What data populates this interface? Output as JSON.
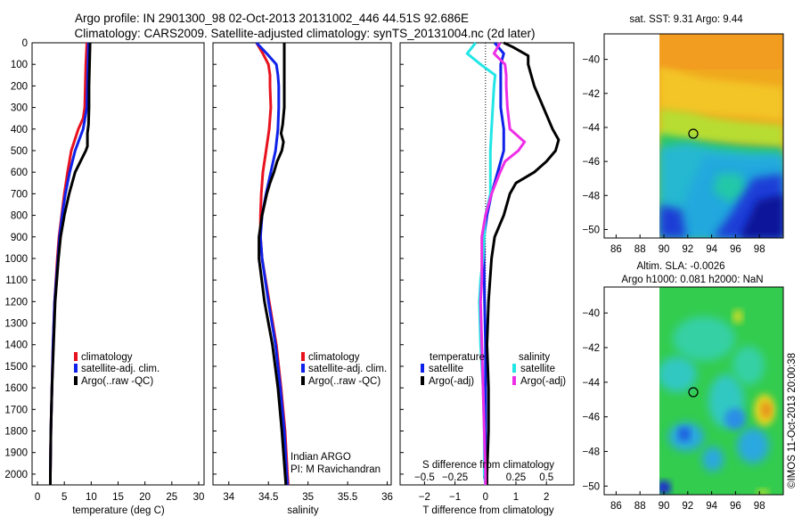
{
  "header": {
    "line1": "Argo profile: IN 2901300_98 02-Oct-2013 20131002_446 44.51S 92.686E",
    "line2": "Climatology: CARS2009. Satellite-adjusted climatology: synTS_20131004.nc (2d later)"
  },
  "colors": {
    "red": "#e8121f",
    "blue": "#0f22ea",
    "black": "#000000",
    "cyan": "#22e6e6",
    "magenta": "#ee2ee6"
  },
  "chart_data": [
    {
      "type": "line",
      "panel": "temperature",
      "xlabel": "temperature (deg C)",
      "xlim": [
        -1,
        31
      ],
      "xticks": [
        0,
        5,
        10,
        15,
        20,
        25,
        30
      ],
      "ylim": [
        0,
        2050
      ],
      "yticks": [
        0,
        100,
        200,
        300,
        400,
        500,
        600,
        700,
        800,
        900,
        1000,
        1100,
        1200,
        1300,
        1400,
        1500,
        1600,
        1700,
        1800,
        1900,
        2000
      ],
      "legend": [
        "climatology",
        "satellite-adj. clim.",
        "Argo(..raw -QC)"
      ],
      "series": [
        {
          "name": "climatology",
          "color": "red",
          "depth": [
            0,
            100,
            200,
            300,
            350,
            400,
            500,
            600,
            700,
            800,
            900,
            1000,
            1200,
            1400,
            1600,
            1800,
            2000,
            2050
          ],
          "values": [
            9.2,
            9.0,
            8.9,
            8.8,
            8.5,
            7.6,
            6.3,
            5.6,
            5.0,
            4.5,
            4.0,
            3.7,
            3.2,
            2.9,
            2.7,
            2.5,
            2.4,
            2.4
          ]
        },
        {
          "name": "satellite-adj. clim.",
          "color": "blue",
          "depth": [
            0,
            100,
            200,
            300,
            400,
            500,
            600,
            700,
            800,
            900,
            1000,
            1200,
            1400,
            1600,
            1800,
            2000,
            2050
          ],
          "values": [
            9.5,
            9.4,
            9.3,
            9.2,
            8.5,
            7.0,
            6.0,
            5.2,
            4.6,
            4.1,
            3.8,
            3.2,
            2.9,
            2.7,
            2.5,
            2.4,
            2.4
          ]
        },
        {
          "name": "Argo(..raw -QC)",
          "color": "black",
          "depth": [
            0,
            100,
            200,
            300,
            380,
            420,
            480,
            500,
            550,
            600,
            700,
            800,
            900,
            1000,
            1200,
            1400,
            1600,
            1800,
            2000,
            2050
          ],
          "values": [
            9.8,
            9.7,
            9.6,
            9.6,
            9.5,
            9.3,
            9.3,
            9.0,
            8.0,
            7.0,
            5.9,
            5.0,
            4.3,
            3.9,
            3.3,
            3.0,
            2.7,
            2.5,
            2.4,
            2.4
          ]
        }
      ]
    },
    {
      "type": "line",
      "panel": "salinity",
      "xlabel": "salinity",
      "xlim": [
        33.8,
        36.05
      ],
      "xticks": [
        34,
        34.5,
        35,
        35.5,
        36
      ],
      "ylim": [
        0,
        2050
      ],
      "legend": [
        "climatology",
        "satellite-adj. clim.",
        "Argo(..raw -QC)"
      ],
      "note": [
        "Indian ARGO",
        "PI: M Ravichandran"
      ],
      "series": [
        {
          "name": "climatology",
          "color": "red",
          "depth": [
            0,
            50,
            100,
            150,
            200,
            300,
            400,
            500,
            600,
            700,
            800,
            900,
            1000,
            1200,
            1400,
            1600,
            1800,
            2000,
            2050
          ],
          "values": [
            34.35,
            34.43,
            34.5,
            34.52,
            34.52,
            34.53,
            34.51,
            34.47,
            34.43,
            34.41,
            34.4,
            34.4,
            34.42,
            34.51,
            34.6,
            34.66,
            34.71,
            34.74,
            34.75
          ]
        },
        {
          "name": "satellite-adj. clim.",
          "color": "blue",
          "depth": [
            0,
            50,
            100,
            150,
            200,
            300,
            400,
            500,
            600,
            700,
            800,
            900,
            1000,
            1200,
            1400,
            1600,
            1800,
            2000,
            2050
          ],
          "values": [
            34.35,
            34.48,
            34.6,
            34.62,
            34.63,
            34.63,
            34.62,
            34.59,
            34.53,
            34.47,
            34.42,
            34.4,
            34.42,
            34.5,
            34.59,
            34.65,
            34.7,
            34.73,
            34.74
          ]
        },
        {
          "name": "Argo(..raw -QC)",
          "color": "black",
          "depth": [
            0,
            100,
            300,
            380,
            420,
            460,
            500,
            550,
            600,
            650,
            700,
            800,
            900,
            1000,
            1200,
            1400,
            1600,
            1800,
            2000,
            2050
          ],
          "values": [
            34.7,
            34.7,
            34.7,
            34.68,
            34.66,
            34.69,
            34.67,
            34.61,
            34.57,
            34.52,
            34.48,
            34.42,
            34.38,
            34.38,
            34.45,
            34.55,
            34.62,
            34.67,
            34.71,
            34.72
          ]
        }
      ]
    },
    {
      "type": "line",
      "panel": "difference",
      "xlabel": "T difference from climatology",
      "xlabel2": "S difference from climatology",
      "xlim": [
        -2.8,
        2.9
      ],
      "xticks": [
        -2,
        -1,
        0,
        1,
        2
      ],
      "xticks_s": [
        -0.5,
        -0.25,
        0,
        0.25,
        0.5
      ],
      "ylim": [
        0,
        2050
      ],
      "legend_left_title": "temperature",
      "legend_right_title": "salinity",
      "legend": [
        "satellite",
        "Argo(-adj)",
        "satellite",
        "Argo(-adj)"
      ],
      "series": [
        {
          "name": "temperature satellite",
          "color": "blue",
          "depth": [
            0,
            50,
            100,
            200,
            300,
            350,
            400,
            500,
            600,
            700,
            800,
            900,
            1000,
            1200,
            1400,
            1600,
            1800,
            2000,
            2050
          ],
          "values": [
            0.3,
            0.6,
            0.5,
            0.5,
            0.5,
            0.55,
            0.6,
            0.6,
            0.4,
            0.2,
            0.05,
            -0.05,
            -0.05,
            -0.03,
            0,
            0,
            0,
            0,
            0
          ]
        },
        {
          "name": "temperature Argo(-adj)",
          "color": "black",
          "depth": [
            0,
            20,
            60,
            100,
            200,
            300,
            400,
            450,
            500,
            550,
            600,
            650,
            700,
            800,
            900,
            1000,
            1200,
            1400,
            1600,
            1800,
            2000,
            2050
          ],
          "values": [
            0.6,
            0.9,
            1.4,
            1.4,
            1.6,
            1.9,
            2.2,
            2.4,
            2.3,
            2.0,
            1.6,
            1.0,
            0.8,
            0.6,
            0.3,
            0.2,
            0.1,
            0.05,
            0.1,
            0.1,
            0.05,
            0.05
          ]
        },
        {
          "name": "salinity satellite",
          "color": "cyan",
          "depth": [
            0,
            50,
            100,
            150,
            200,
            300,
            400,
            500,
            600,
            700,
            800,
            900,
            1000,
            1100,
            1200,
            1400,
            1600,
            1800,
            2000,
            2050
          ],
          "values": [
            -0.08,
            -0.15,
            -0.04,
            0.08,
            0.07,
            0.06,
            0.05,
            0.04,
            0.04,
            0.04,
            0.0,
            -0.01,
            -0.02,
            -0.04,
            -0.05,
            -0.04,
            -0.02,
            -0.01,
            -0.01,
            0
          ]
        },
        {
          "name": "salinity Argo(-adj)",
          "color": "magenta",
          "depth": [
            0,
            50,
            100,
            150,
            200,
            300,
            400,
            460,
            500,
            550,
            600,
            700,
            800,
            900,
            1000,
            1100,
            1200,
            1400,
            1600,
            1800,
            2000,
            2050
          ],
          "values": [
            0.12,
            0.07,
            0.16,
            0.17,
            0.17,
            0.18,
            0.2,
            0.32,
            0.27,
            0.16,
            0.12,
            0.05,
            0.0,
            -0.03,
            -0.03,
            -0.03,
            -0.04,
            -0.03,
            -0.02,
            -0.01,
            0,
            0
          ]
        }
      ]
    },
    {
      "type": "heatmap",
      "panel": "sst_map",
      "title": "sat. SST: 9.31  Argo: 9.44",
      "xlim": [
        85,
        100
      ],
      "ylim": [
        -50.5,
        -38.5
      ],
      "xticks": [
        86,
        88,
        90,
        92,
        94,
        96,
        98
      ],
      "yticks": [
        -40,
        -42,
        -44,
        -46,
        -48,
        -50
      ],
      "data_lon_min": 90,
      "argo_position": [
        92.686,
        -44.51
      ]
    },
    {
      "type": "heatmap",
      "panel": "sla_map",
      "title": "Altim. SLA: -0.0026",
      "subtitle": "Argo h1000: 0.081 h2000: NaN",
      "xlim": [
        85,
        100
      ],
      "ylim": [
        -50.5,
        -38.5
      ],
      "xticks": [
        86,
        88,
        90,
        92,
        94,
        96,
        98
      ],
      "yticks": [
        -40,
        -42,
        -44,
        -46,
        -48,
        -50
      ],
      "data_lon_min": 90,
      "argo_position": [
        92.686,
        -44.51
      ]
    }
  ],
  "side_label": "©IMOS 11-Oct-2013 20:00:38"
}
